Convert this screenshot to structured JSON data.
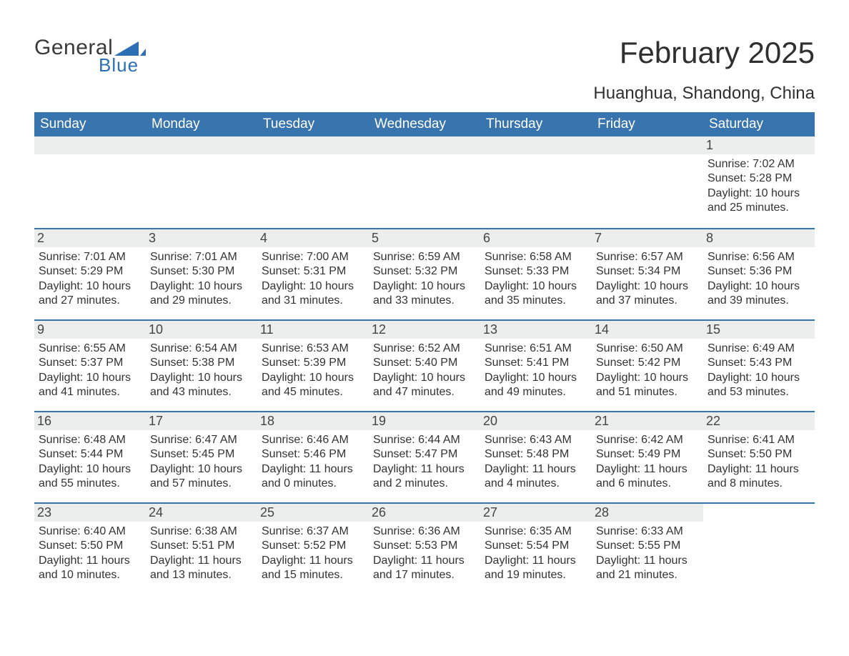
{
  "brand": {
    "name": "General",
    "sub": "Blue",
    "logo_color": "#2d6fb5",
    "text_color": "#3a3a3a"
  },
  "title": "February 2025",
  "location": "Huanghua, Shandong, China",
  "colors": {
    "header_bg": "#3874ae",
    "header_text": "#ffffff",
    "daynum_bg": "#eceded",
    "cell_border": "#3874ae",
    "body_text": "#333333"
  },
  "day_names": [
    "Sunday",
    "Monday",
    "Tuesday",
    "Wednesday",
    "Thursday",
    "Friday",
    "Saturday"
  ],
  "weeks": [
    [
      null,
      null,
      null,
      null,
      null,
      null,
      {
        "n": "1",
        "sunrise": "Sunrise: 7:02 AM",
        "sunset": "Sunset: 5:28 PM",
        "d1": "Daylight: 10 hours",
        "d2": "and 25 minutes."
      }
    ],
    [
      {
        "n": "2",
        "sunrise": "Sunrise: 7:01 AM",
        "sunset": "Sunset: 5:29 PM",
        "d1": "Daylight: 10 hours",
        "d2": "and 27 minutes."
      },
      {
        "n": "3",
        "sunrise": "Sunrise: 7:01 AM",
        "sunset": "Sunset: 5:30 PM",
        "d1": "Daylight: 10 hours",
        "d2": "and 29 minutes."
      },
      {
        "n": "4",
        "sunrise": "Sunrise: 7:00 AM",
        "sunset": "Sunset: 5:31 PM",
        "d1": "Daylight: 10 hours",
        "d2": "and 31 minutes."
      },
      {
        "n": "5",
        "sunrise": "Sunrise: 6:59 AM",
        "sunset": "Sunset: 5:32 PM",
        "d1": "Daylight: 10 hours",
        "d2": "and 33 minutes."
      },
      {
        "n": "6",
        "sunrise": "Sunrise: 6:58 AM",
        "sunset": "Sunset: 5:33 PM",
        "d1": "Daylight: 10 hours",
        "d2": "and 35 minutes."
      },
      {
        "n": "7",
        "sunrise": "Sunrise: 6:57 AM",
        "sunset": "Sunset: 5:34 PM",
        "d1": "Daylight: 10 hours",
        "d2": "and 37 minutes."
      },
      {
        "n": "8",
        "sunrise": "Sunrise: 6:56 AM",
        "sunset": "Sunset: 5:36 PM",
        "d1": "Daylight: 10 hours",
        "d2": "and 39 minutes."
      }
    ],
    [
      {
        "n": "9",
        "sunrise": "Sunrise: 6:55 AM",
        "sunset": "Sunset: 5:37 PM",
        "d1": "Daylight: 10 hours",
        "d2": "and 41 minutes."
      },
      {
        "n": "10",
        "sunrise": "Sunrise: 6:54 AM",
        "sunset": "Sunset: 5:38 PM",
        "d1": "Daylight: 10 hours",
        "d2": "and 43 minutes."
      },
      {
        "n": "11",
        "sunrise": "Sunrise: 6:53 AM",
        "sunset": "Sunset: 5:39 PM",
        "d1": "Daylight: 10 hours",
        "d2": "and 45 minutes."
      },
      {
        "n": "12",
        "sunrise": "Sunrise: 6:52 AM",
        "sunset": "Sunset: 5:40 PM",
        "d1": "Daylight: 10 hours",
        "d2": "and 47 minutes."
      },
      {
        "n": "13",
        "sunrise": "Sunrise: 6:51 AM",
        "sunset": "Sunset: 5:41 PM",
        "d1": "Daylight: 10 hours",
        "d2": "and 49 minutes."
      },
      {
        "n": "14",
        "sunrise": "Sunrise: 6:50 AM",
        "sunset": "Sunset: 5:42 PM",
        "d1": "Daylight: 10 hours",
        "d2": "and 51 minutes."
      },
      {
        "n": "15",
        "sunrise": "Sunrise: 6:49 AM",
        "sunset": "Sunset: 5:43 PM",
        "d1": "Daylight: 10 hours",
        "d2": "and 53 minutes."
      }
    ],
    [
      {
        "n": "16",
        "sunrise": "Sunrise: 6:48 AM",
        "sunset": "Sunset: 5:44 PM",
        "d1": "Daylight: 10 hours",
        "d2": "and 55 minutes."
      },
      {
        "n": "17",
        "sunrise": "Sunrise: 6:47 AM",
        "sunset": "Sunset: 5:45 PM",
        "d1": "Daylight: 10 hours",
        "d2": "and 57 minutes."
      },
      {
        "n": "18",
        "sunrise": "Sunrise: 6:46 AM",
        "sunset": "Sunset: 5:46 PM",
        "d1": "Daylight: 11 hours",
        "d2": "and 0 minutes."
      },
      {
        "n": "19",
        "sunrise": "Sunrise: 6:44 AM",
        "sunset": "Sunset: 5:47 PM",
        "d1": "Daylight: 11 hours",
        "d2": "and 2 minutes."
      },
      {
        "n": "20",
        "sunrise": "Sunrise: 6:43 AM",
        "sunset": "Sunset: 5:48 PM",
        "d1": "Daylight: 11 hours",
        "d2": "and 4 minutes."
      },
      {
        "n": "21",
        "sunrise": "Sunrise: 6:42 AM",
        "sunset": "Sunset: 5:49 PM",
        "d1": "Daylight: 11 hours",
        "d2": "and 6 minutes."
      },
      {
        "n": "22",
        "sunrise": "Sunrise: 6:41 AM",
        "sunset": "Sunset: 5:50 PM",
        "d1": "Daylight: 11 hours",
        "d2": "and 8 minutes."
      }
    ],
    [
      {
        "n": "23",
        "sunrise": "Sunrise: 6:40 AM",
        "sunset": "Sunset: 5:50 PM",
        "d1": "Daylight: 11 hours",
        "d2": "and 10 minutes."
      },
      {
        "n": "24",
        "sunrise": "Sunrise: 6:38 AM",
        "sunset": "Sunset: 5:51 PM",
        "d1": "Daylight: 11 hours",
        "d2": "and 13 minutes."
      },
      {
        "n": "25",
        "sunrise": "Sunrise: 6:37 AM",
        "sunset": "Sunset: 5:52 PM",
        "d1": "Daylight: 11 hours",
        "d2": "and 15 minutes."
      },
      {
        "n": "26",
        "sunrise": "Sunrise: 6:36 AM",
        "sunset": "Sunset: 5:53 PM",
        "d1": "Daylight: 11 hours",
        "d2": "and 17 minutes."
      },
      {
        "n": "27",
        "sunrise": "Sunrise: 6:35 AM",
        "sunset": "Sunset: 5:54 PM",
        "d1": "Daylight: 11 hours",
        "d2": "and 19 minutes."
      },
      {
        "n": "28",
        "sunrise": "Sunrise: 6:33 AM",
        "sunset": "Sunset: 5:55 PM",
        "d1": "Daylight: 11 hours",
        "d2": "and 21 minutes."
      },
      null
    ]
  ]
}
